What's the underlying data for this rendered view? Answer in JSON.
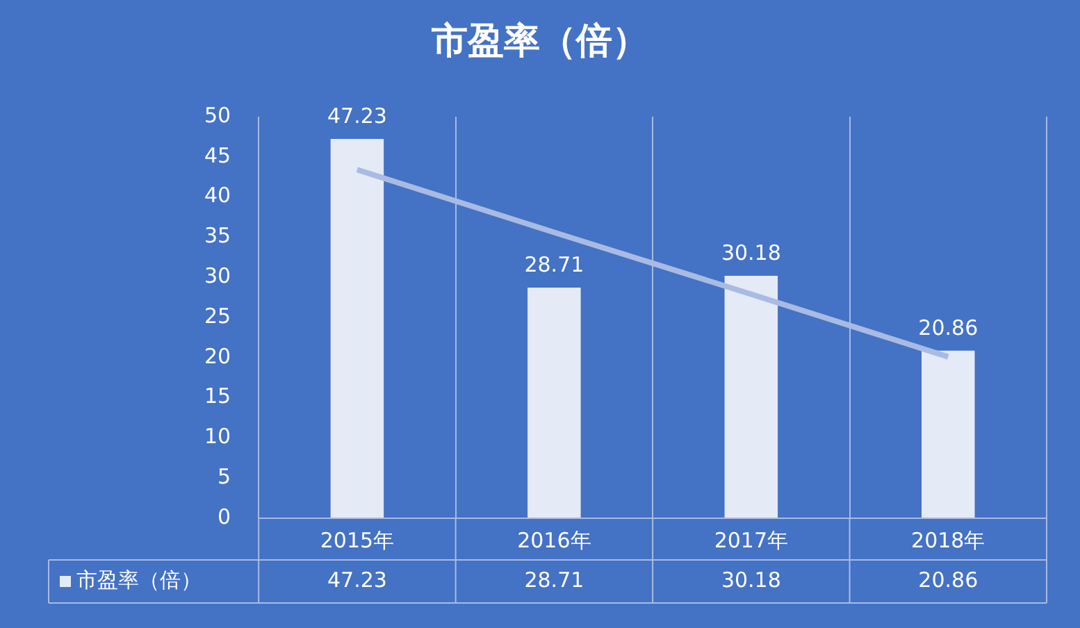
{
  "chart_data": {
    "type": "bar",
    "title": "市盈率（倍）",
    "categories": [
      "2015年",
      "2016年",
      "2017年",
      "2018年"
    ],
    "series": [
      {
        "name": "市盈率（倍）",
        "color": "#e4eaf6",
        "values": [
          47.23,
          28.71,
          30.18,
          20.86
        ],
        "value_labels": [
          "47.23",
          "28.71",
          "30.18",
          "20.86"
        ]
      },
      {
        "type": "line",
        "color": "#a9bbe3",
        "values": [
          43.4,
          35.6,
          27.9,
          20.1
        ]
      }
    ],
    "ylim": [
      0,
      50
    ],
    "yticks": [
      0,
      5,
      10,
      15,
      20,
      25,
      30,
      35,
      40,
      45,
      50
    ],
    "grid": "x",
    "marker": "none"
  }
}
